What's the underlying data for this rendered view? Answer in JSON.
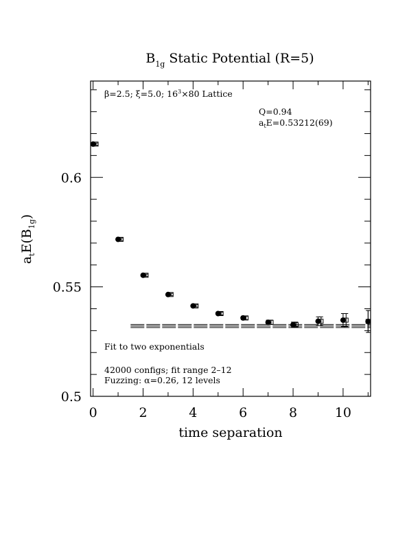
{
  "chart_data": {
    "type": "scatter",
    "title_main": "B",
    "title_sub": "1g",
    "title_rest": " Static Potential (R=5)",
    "xlabel": "time separation",
    "ylabel_a": "a",
    "ylabel_t": "t",
    "ylabel_e": "E(B",
    "ylabel_sub": "1g",
    "ylabel_close": ")",
    "xlim": [
      -0.1,
      11.1
    ],
    "ylim": [
      0.5,
      0.644
    ],
    "xticks": [
      0,
      2,
      4,
      6,
      8,
      10
    ],
    "xtick_labels": [
      "0",
      "2",
      "4",
      "6",
      "8",
      "10"
    ],
    "yticks": [
      0.5,
      0.55,
      0.6
    ],
    "ytick_labels": [
      "0.5",
      "0.55",
      "0.6"
    ],
    "grid": false,
    "annotations": {
      "lattice_prefix": "β=2.5; ξ=5.0; 16",
      "lattice_sup": "3",
      "lattice_suffix": "×80 Lattice",
      "q_value": "Q=0.94",
      "energy_prefix": "a",
      "energy_sub": "t",
      "energy_suffix": "E=0.53212(69)",
      "fit_label": "Fit to two exponentials",
      "configs": "42000 configs; fit range 2–12",
      "fuzzing": "Fuzzing: α=0.26, 12 levels"
    },
    "series": [
      {
        "marker": "filled-circle",
        "x": [
          0,
          1,
          2,
          3,
          4,
          5,
          6,
          7,
          8,
          9,
          10,
          11
        ],
        "y": [
          0.6152,
          0.5717,
          0.5553,
          0.5465,
          0.5413,
          0.5378,
          0.5358,
          0.5338,
          0.5327,
          0.5343,
          0.5348,
          0.5342
        ],
        "err": [
          0.0005,
          0.0005,
          0.0005,
          0.0005,
          0.0005,
          0.0006,
          0.0008,
          0.001,
          0.0012,
          0.002,
          0.003,
          0.005
        ]
      },
      {
        "marker": "open-square",
        "x": [
          0.12,
          1.12,
          2.12,
          3.12,
          4.12,
          5.12,
          6.12,
          7.12,
          8.12,
          9.12,
          10.12,
          11.0
        ],
        "y": [
          0.6152,
          0.5717,
          0.5553,
          0.5465,
          0.5413,
          0.5378,
          0.5358,
          0.5338,
          0.5327,
          0.5343,
          0.5348,
          0.5342
        ],
        "err": [
          0.0005,
          0.0005,
          0.0005,
          0.0005,
          0.0005,
          0.0006,
          0.0008,
          0.001,
          0.0012,
          0.002,
          0.003,
          0.005
        ]
      }
    ],
    "fit": {
      "x_range": [
        1.5,
        11.1
      ],
      "value": 0.53212,
      "error": 0.00069
    }
  }
}
